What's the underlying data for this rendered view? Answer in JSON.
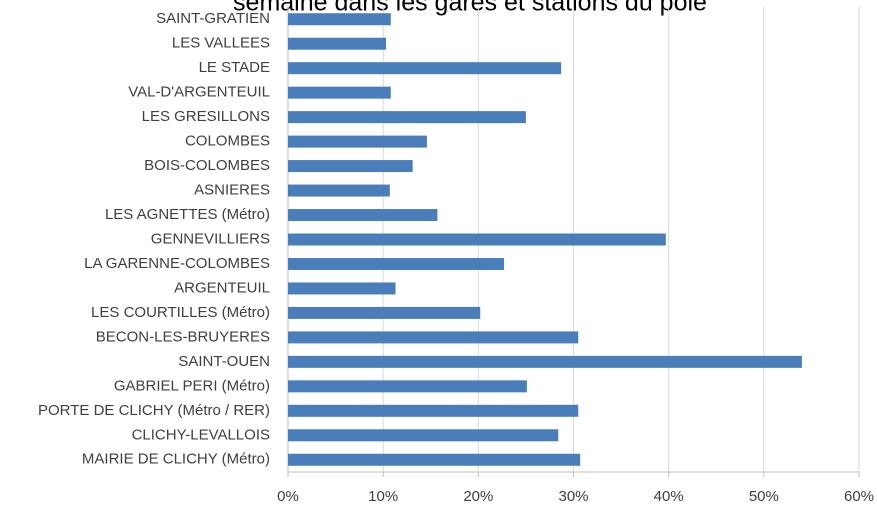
{
  "chart_data": {
    "type": "barh",
    "title": "semaine dans les gares et stations du pôle",
    "categories": [
      "SAINT-GRATIEN",
      "LES VALLEES",
      "LE STADE",
      "VAL-D'ARGENTEUIL",
      "LES GRESILLONS",
      "COLOMBES",
      "BOIS-COLOMBES",
      "ASNIERES",
      "LES AGNETTES (Métro)",
      "GENNEVILLIERS",
      "LA GARENNE-COLOMBES",
      "ARGENTEUIL",
      "LES COURTILLES (Métro)",
      "BECON-LES-BRUYERES",
      "SAINT-OUEN",
      "GABRIEL PERI (Métro)",
      "PORTE DE CLICHY (Métro / RER)",
      "CLICHY-LEVALLOIS",
      "MAIRIE DE CLICHY (Métro)"
    ],
    "values": [
      10.8,
      10.3,
      28.7,
      10.8,
      25.0,
      14.6,
      13.1,
      10.7,
      15.7,
      39.7,
      22.7,
      11.3,
      20.2,
      30.5,
      54.0,
      25.1,
      30.5,
      28.4,
      30.7
    ],
    "color": "#4a7ebb",
    "xlim": [
      0,
      60
    ],
    "xticks": [
      {
        "value": 0,
        "label": "0%"
      },
      {
        "value": 10,
        "label": "10%"
      },
      {
        "value": 20,
        "label": "20%"
      },
      {
        "value": 30,
        "label": "30%"
      },
      {
        "value": 40,
        "label": "40%"
      },
      {
        "value": 50,
        "label": "50%"
      },
      {
        "value": 60,
        "label": "60%"
      }
    ],
    "grid": true
  }
}
